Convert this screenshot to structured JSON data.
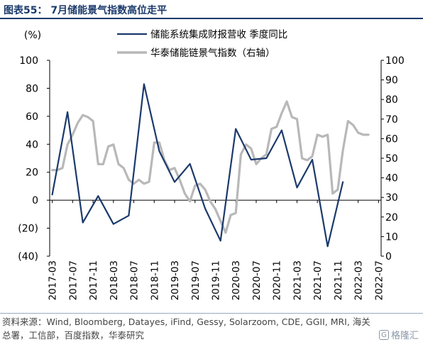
{
  "header": {
    "title": "图表55：  7月储能景气指数高位走平"
  },
  "source": {
    "text": "资料来源：Wind, Bloomberg, Datayes, iFind, Gessy, Solarzoom, CDE, GGII, MRI, 海关总署，工信部，百度指数，华泰研究"
  },
  "watermark": {
    "text": "格隆汇"
  },
  "chart_data": {
    "type": "line",
    "y_left_unit": "(%)",
    "ylim_left": [
      -40,
      100
    ],
    "yticks_left": [
      "100",
      "80",
      "60",
      "40",
      "20",
      "0",
      "(20)",
      "(40)"
    ],
    "ylim_right": [
      0,
      100
    ],
    "yticks_right": [
      "100",
      "90",
      "80",
      "70",
      "60",
      "50",
      "40",
      "30",
      "20",
      "10",
      "0"
    ],
    "x_start": "2017-03",
    "xtick_labels": [
      "2017-03",
      "2017-07",
      "2017-11",
      "2018-03",
      "2018-07",
      "2018-11",
      "2019-03",
      "2019-07",
      "2019-11",
      "2020-03",
      "2020-07",
      "2020-11",
      "2021-03",
      "2021-07",
      "2021-11",
      "2022-03",
      "2022-07"
    ],
    "series": [
      {
        "name": "储能系统集成财报营收 季度同比",
        "axis": "left",
        "color": "#1b3a6b",
        "x": [
          "2017-03",
          "2017-06",
          "2017-09",
          "2017-12",
          "2018-03",
          "2018-06",
          "2018-09",
          "2018-12",
          "2019-03",
          "2019-06",
          "2019-09",
          "2019-12",
          "2020-03",
          "2020-06",
          "2020-09",
          "2020-12",
          "2021-03",
          "2021-06",
          "2021-09",
          "2021-12",
          "2022-03"
        ],
        "values": [
          4,
          63,
          -16,
          3,
          -17,
          -11,
          83,
          35,
          13,
          26,
          -6,
          -29,
          51,
          29,
          30,
          50,
          9,
          29,
          -33,
          13,
          null
        ]
      },
      {
        "name": "华泰储能链景气指数（右轴）",
        "axis": "right",
        "color": "#b8b8b8",
        "x": [
          "2017-03",
          "2017-04",
          "2017-05",
          "2017-06",
          "2017-07",
          "2017-08",
          "2017-09",
          "2017-10",
          "2017-11",
          "2017-12",
          "2018-01",
          "2018-02",
          "2018-03",
          "2018-04",
          "2018-05",
          "2018-06",
          "2018-07",
          "2018-08",
          "2018-09",
          "2018-10",
          "2018-11",
          "2018-12",
          "2019-01",
          "2019-02",
          "2019-03",
          "2019-04",
          "2019-05",
          "2019-06",
          "2019-07",
          "2019-08",
          "2019-09",
          "2019-10",
          "2019-11",
          "2019-12",
          "2020-01",
          "2020-02",
          "2020-03",
          "2020-04",
          "2020-05",
          "2020-06",
          "2020-07",
          "2020-08",
          "2020-09",
          "2020-10",
          "2020-11",
          "2020-12",
          "2021-01",
          "2021-02",
          "2021-03",
          "2021-04",
          "2021-05",
          "2021-06",
          "2021-07",
          "2021-08",
          "2021-09",
          "2021-10",
          "2021-11",
          "2021-12",
          "2022-01",
          "2022-02",
          "2022-03",
          "2022-04",
          "2022-05",
          "2022-06",
          "2022-07"
        ],
        "values": [
          44,
          44,
          45,
          57,
          62,
          68,
          72,
          71,
          69,
          47,
          47,
          56,
          57,
          47,
          45,
          39,
          37,
          39,
          37,
          38,
          58,
          58,
          49,
          44,
          45,
          39,
          32,
          28,
          36,
          37,
          34,
          28,
          24,
          18,
          12,
          21,
          22,
          52,
          57,
          55,
          47,
          50,
          52,
          65,
          66,
          73,
          79,
          71,
          70,
          50,
          49,
          51,
          62,
          61,
          62,
          32,
          34,
          54,
          69,
          67,
          63,
          62,
          62,
          null,
          null
        ]
      }
    ],
    "legend_position": "top-center"
  }
}
